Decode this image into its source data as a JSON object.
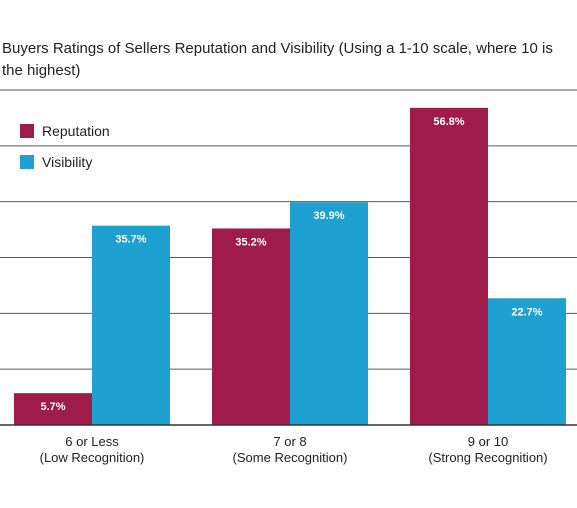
{
  "chart_data": {
    "type": "bar",
    "title": "Buyers Ratings of Sellers Reputation and Visibility (Using a 1-10 scale, where 10 is the highest)",
    "categories": [
      [
        "6 or Less",
        "(Low Recognition)"
      ],
      [
        "7 or 8",
        "(Some Recognition)"
      ],
      [
        "9 or 10",
        "(Strong Recognition)"
      ]
    ],
    "series": [
      {
        "name": "Reputation",
        "color": "#9e1b4a",
        "values": [
          5.7,
          35.2,
          56.8
        ],
        "labels": [
          "5.7%",
          "35.2%",
          "56.8%"
        ]
      },
      {
        "name": "Visibility",
        "color": "#1ea0d0",
        "values": [
          35.7,
          39.9,
          22.7
        ],
        "labels": [
          "35.7%",
          "39.9%",
          "22.7%"
        ]
      }
    ],
    "ylim": [
      0,
      60
    ],
    "grid": true,
    "legend_position": "top-left",
    "xlabel": "",
    "ylabel": ""
  }
}
